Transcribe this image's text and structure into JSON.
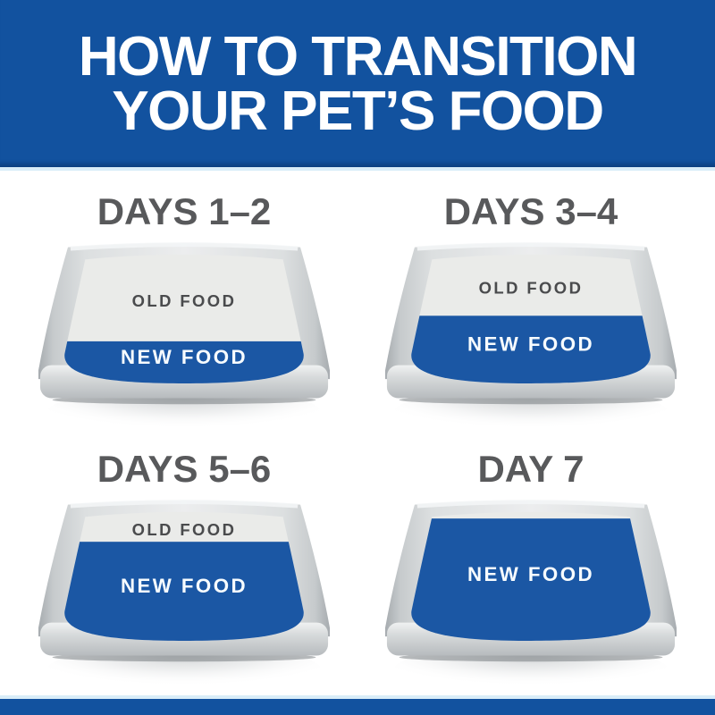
{
  "header": {
    "title_line1": "HOW TO TRANSITION",
    "title_line2": "YOUR PET’S FOOD"
  },
  "colors": {
    "banner_blue": "#12529f",
    "new_food_blue": "#1b57a4",
    "panel_label_gray": "#58595b",
    "old_food_text_gray": "#4a4b4d",
    "divider_light_blue": "#d9edf8",
    "bowl_silver": "#c8ccce",
    "old_food_surface": "#eaebe9"
  },
  "panels": [
    {
      "label": "DAYS 1–2",
      "old_food_label": "OLD FOOD",
      "new_food_label": "NEW FOOD",
      "new_food_level_pct": 31
    },
    {
      "label": "DAYS 3–4",
      "old_food_label": "OLD FOOD",
      "new_food_label": "NEW FOOD",
      "new_food_level_pct": 53
    },
    {
      "label": "DAYS 5–6",
      "old_food_label": "OLD FOOD",
      "new_food_label": "NEW FOOD",
      "new_food_level_pct": 80
    },
    {
      "label": "DAY 7",
      "new_food_label": "NEW FOOD",
      "new_food_level_pct": 100
    }
  ]
}
